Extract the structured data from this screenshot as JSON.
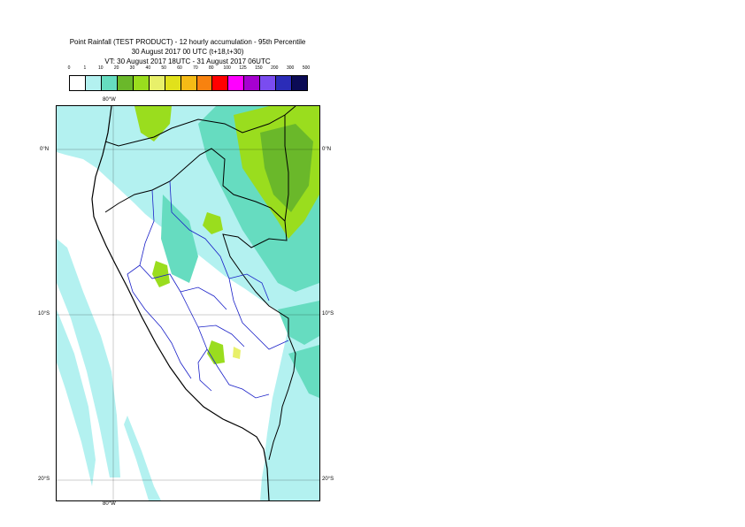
{
  "header": {
    "line1": "Point Rainfall (TEST PRODUCT) - 12 hourly accumulation - 95th Percentile",
    "line2": "30 August 2017 00 UTC (t+18,t+30)",
    "line3": "VT: 30 August 2017 18UTC - 31 August 2017 06UTC"
  },
  "legend": {
    "labels": [
      "0",
      "1",
      "10",
      "20",
      "30",
      "40",
      "50",
      "60",
      "70",
      "80",
      "100",
      "125",
      "150",
      "200",
      "300",
      "500"
    ],
    "colors": [
      "#ffffff",
      "#b3f1f0",
      "#66dcc0",
      "#6ab82a",
      "#9add1e",
      "#e8f06a",
      "#e1e11b",
      "#f5bb16",
      "#f8820f",
      "#ff0000",
      "#ff00ff",
      "#a600d0",
      "#7a4cf0",
      "#2b2cb8",
      "#0b0b55"
    ]
  },
  "axes": {
    "lon_top": "80°W",
    "lon_bottom": "80°W",
    "lat_left": [
      "0°N",
      "10°S",
      "20°S"
    ],
    "lat_right": [
      "0°N",
      "10°S",
      "20°S"
    ]
  }
}
